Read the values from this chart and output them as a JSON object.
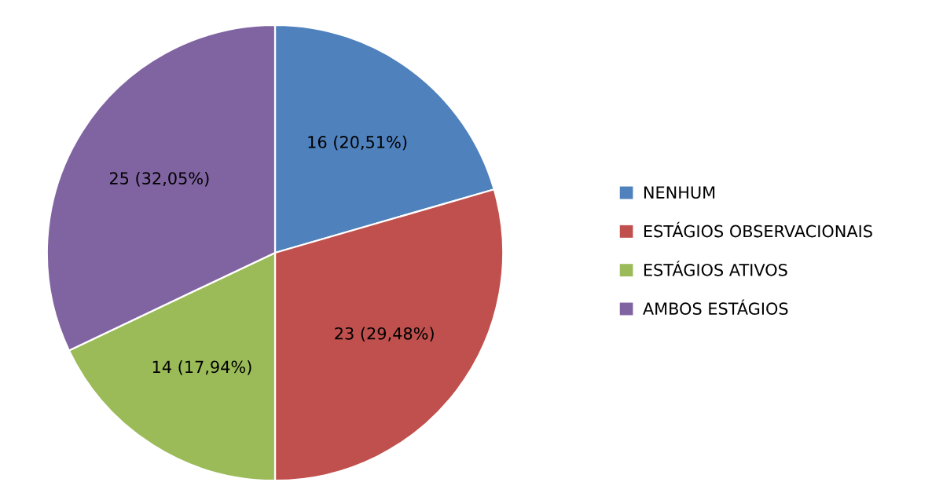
{
  "chart_data": {
    "type": "pie",
    "categories": [
      "NENHUM",
      "ESTÁGIOS OBSERVACIONAIS",
      "ESTÁGIOS ATIVOS",
      "AMBOS ESTÁGIOS"
    ],
    "values": [
      16,
      23,
      14,
      25
    ],
    "colors": [
      "#4f81bd",
      "#c0504d",
      "#9bbb59",
      "#8064a2"
    ],
    "value_labels": [
      "16 (20,51%)",
      "23 (29,48%)",
      "14 (17,94%)",
      "25 (32,05%)"
    ],
    "legend": "right"
  }
}
